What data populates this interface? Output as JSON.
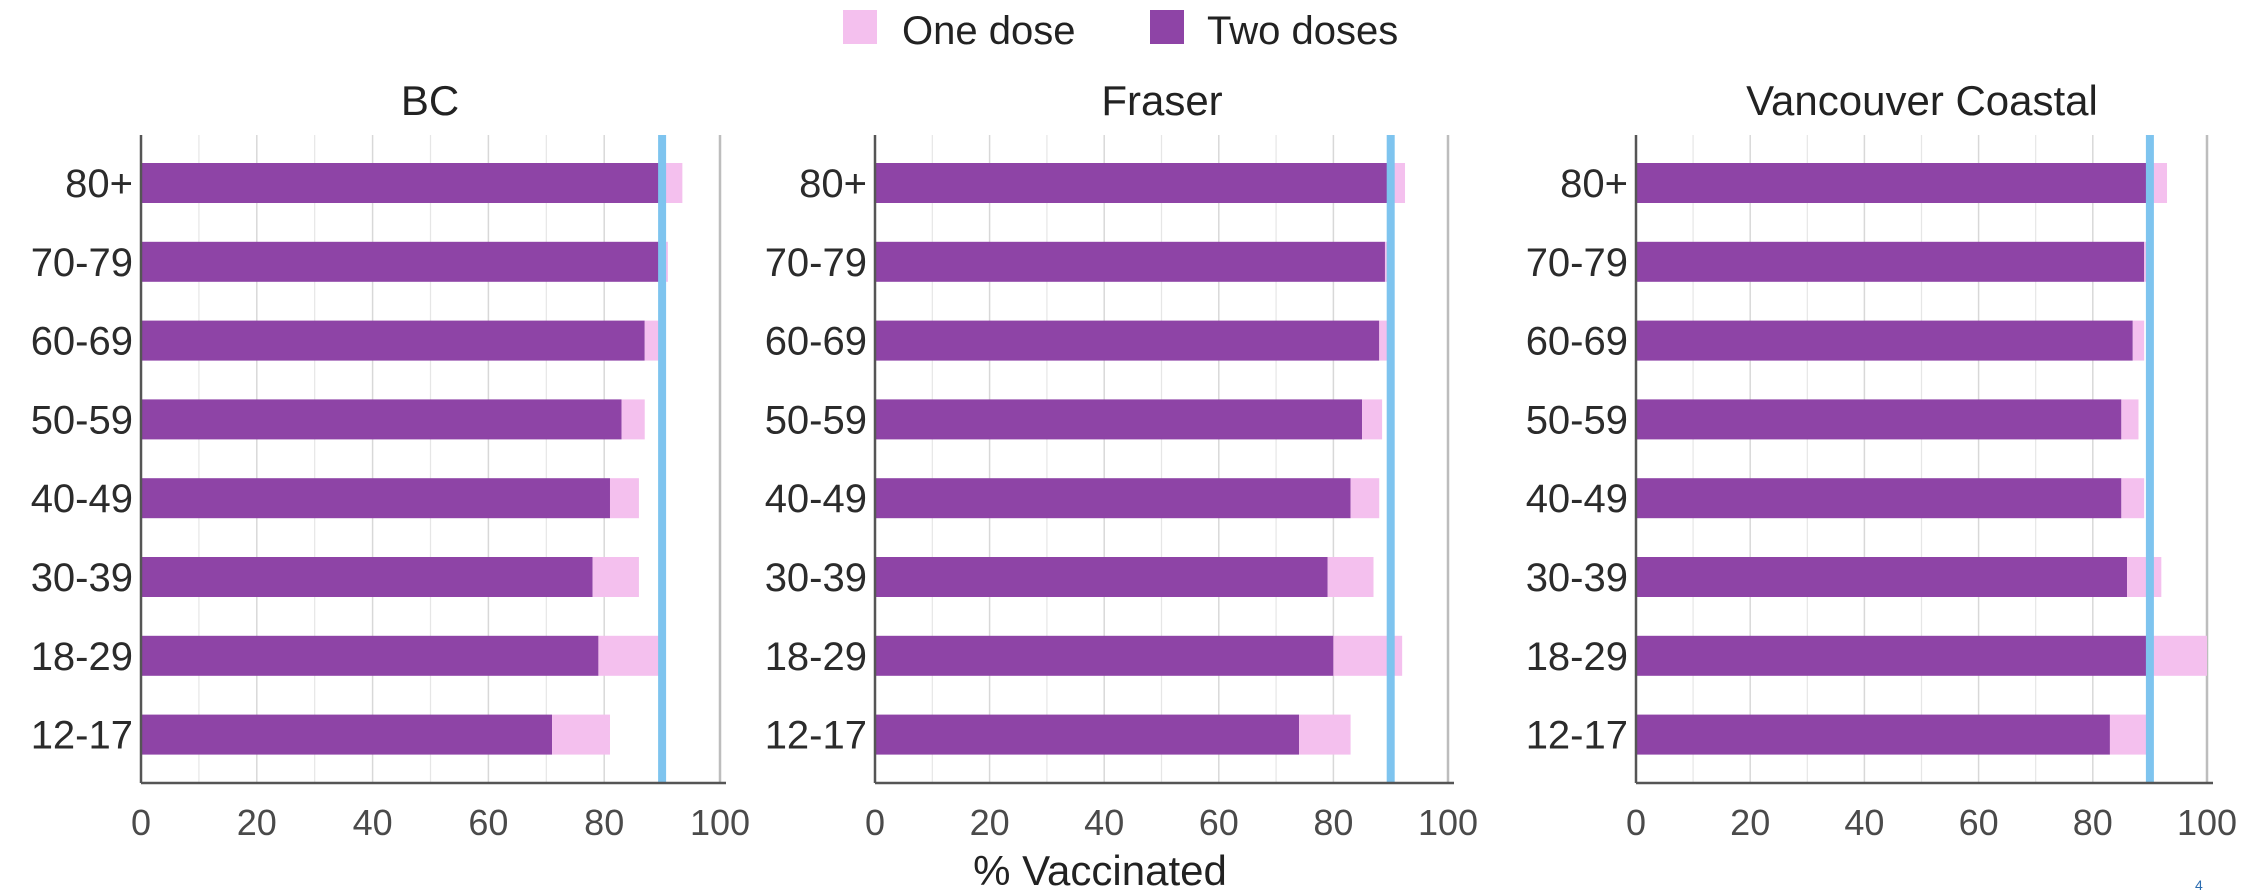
{
  "chart_data": {
    "type": "bar",
    "orientation": "horizontal",
    "stacked": true,
    "legend": {
      "placement": "top-center",
      "entries": [
        {
          "name": "One dose",
          "color": "#f4c0ee"
        },
        {
          "name": "Two doses",
          "color": "#8e44a6"
        }
      ]
    },
    "xlabel": "% Vaccinated",
    "xlim": [
      0,
      100
    ],
    "xticks": [
      0,
      20,
      40,
      60,
      80,
      100
    ],
    "grid": true,
    "reference_line": {
      "value": 90,
      "color": "#7ec4ef"
    },
    "categories": [
      "80+",
      "70-79",
      "60-69",
      "50-59",
      "40-49",
      "30-39",
      "18-29",
      "12-17"
    ],
    "panels": [
      {
        "title": "BC",
        "series": [
          {
            "name": "Two doses",
            "values": [
              90,
              90,
              87,
              83,
              81,
              78,
              79,
              71
            ]
          },
          {
            "name": "One dose",
            "values": [
              3.5,
              1,
              2.5,
              4,
              5,
              8,
              11,
              10
            ]
          }
        ]
      },
      {
        "title": "Fraser",
        "series": [
          {
            "name": "Two doses",
            "values": [
              90,
              89,
              88,
              85,
              83,
              79,
              80,
              74
            ]
          },
          {
            "name": "One dose",
            "values": [
              2.5,
              0.5,
              1.5,
              3.5,
              5,
              8,
              12,
              9
            ]
          }
        ]
      },
      {
        "title": "Vancouver Coastal",
        "series": [
          {
            "name": "Two doses",
            "values": [
              90,
              89,
              87,
              85,
              85,
              86,
              90,
              83
            ]
          },
          {
            "name": "One dose",
            "values": [
              3,
              0.5,
              2,
              3,
              4,
              6,
              10,
              7
            ]
          }
        ]
      }
    ]
  },
  "page": {
    "number": "4"
  }
}
